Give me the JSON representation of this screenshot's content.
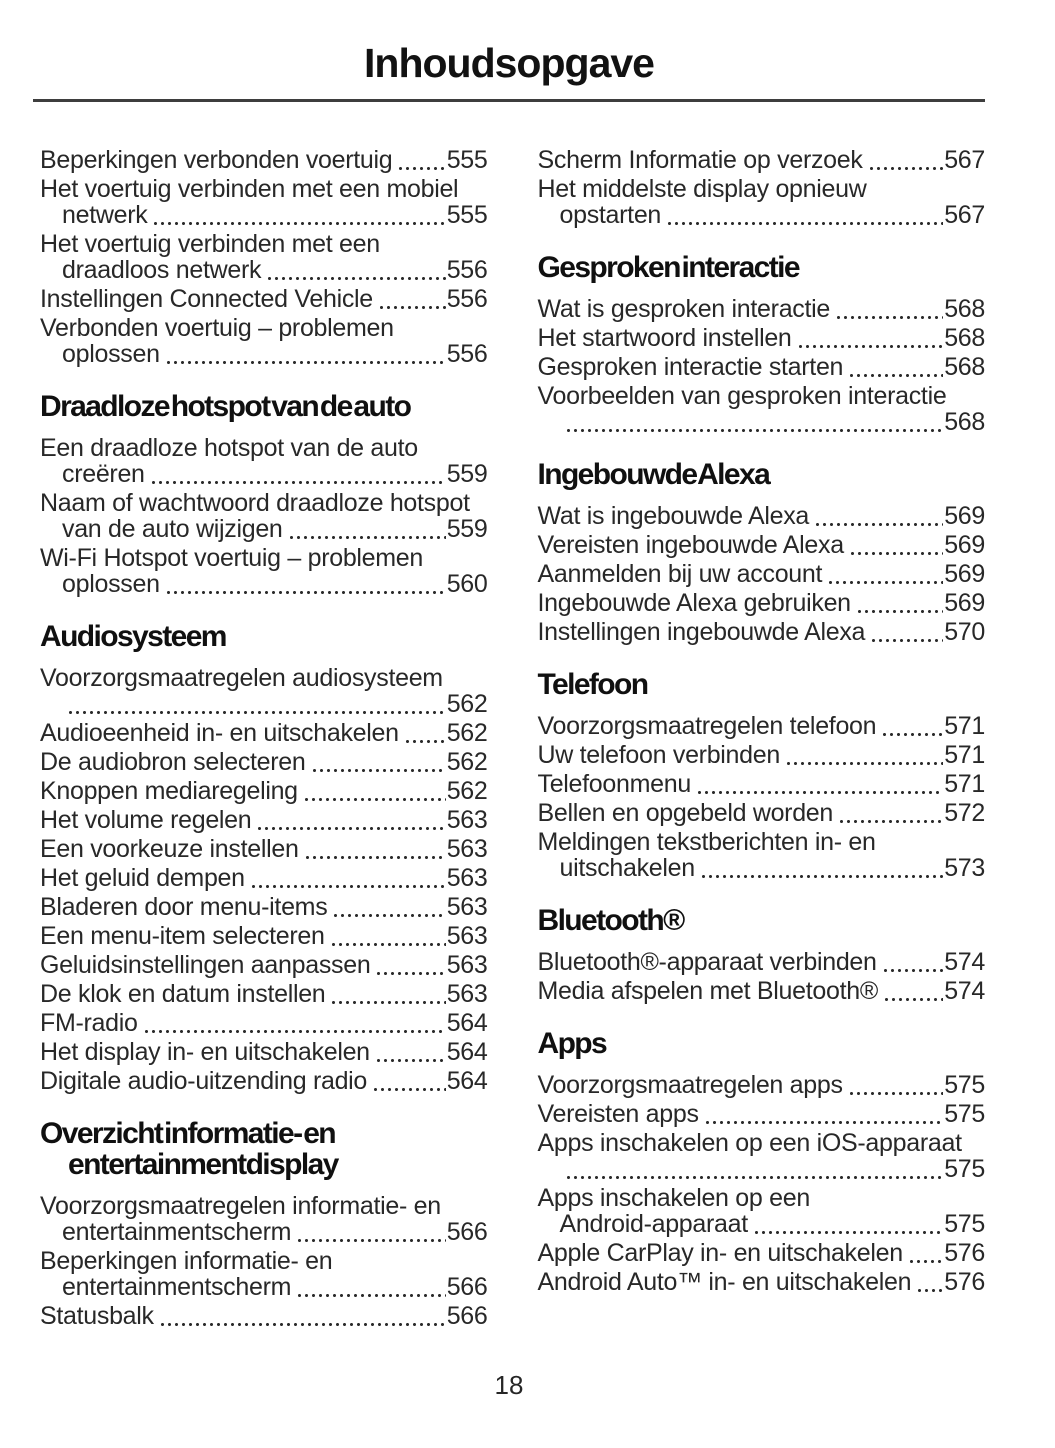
{
  "page_title": "Inhoudsopgave",
  "page_number": "18",
  "columns": [
    {
      "blocks": [
        {
          "heading": null,
          "entries": [
            {
              "text": "Beperkingen verbonden voertuig",
              "page": "555"
            },
            {
              "text": "Het voertuig verbinden met een mobiel",
              "wrap": "netwerk",
              "page": "555"
            },
            {
              "text": "Het voertuig verbinden met een",
              "wrap": "draadloos netwerk",
              "page": "556"
            },
            {
              "text": "Instellingen Connected Vehicle",
              "page": "556"
            },
            {
              "text": "Verbonden voertuig – problemen",
              "wrap": "oplossen",
              "page": "556"
            }
          ]
        },
        {
          "heading": "Draadloze hotspot van de auto",
          "entries": [
            {
              "text": "Een draadloze hotspot van de auto",
              "wrap": "creëren",
              "page": "559"
            },
            {
              "text": "Naam of wachtwoord draadloze hotspot",
              "wrap": "van de auto wijzigen",
              "page": "559"
            },
            {
              "text": "Wi-Fi Hotspot voertuig – problemen",
              "wrap": "oplossen",
              "page": "560"
            }
          ]
        },
        {
          "heading": "Audiosysteem",
          "entries": [
            {
              "text": "Voorzorgsmaatregelen audiosysteem",
              "wrap": "",
              "page": "562"
            },
            {
              "text": "Audioeenheid in- en uitschakelen",
              "page": "562"
            },
            {
              "text": "De audiobron selecteren",
              "page": "562"
            },
            {
              "text": "Knoppen mediaregeling",
              "page": "562"
            },
            {
              "text": "Het volume regelen",
              "page": "563"
            },
            {
              "text": "Een voorkeuze instellen",
              "page": "563"
            },
            {
              "text": "Het geluid dempen",
              "page": "563"
            },
            {
              "text": "Bladeren door menu-items",
              "page": "563"
            },
            {
              "text": "Een menu-item selecteren",
              "page": "563"
            },
            {
              "text": "Geluidsinstellingen aanpassen",
              "page": "563"
            },
            {
              "text": "De klok en datum instellen",
              "page": "563"
            },
            {
              "text": "FM-radio",
              "page": "564"
            },
            {
              "text": "Het display in- en uitschakelen",
              "page": "564"
            },
            {
              "text": "Digitale audio-uitzending radio",
              "page": "564"
            }
          ]
        },
        {
          "heading": "Overzicht informatie- en",
          "heading2": "entertainmentdisplay",
          "entries": [
            {
              "text": "Voorzorgsmaatregelen informatie- en",
              "wrap": "entertainmentscherm",
              "page": "566"
            },
            {
              "text": "Beperkingen informatie- en",
              "wrap": "entertainmentscherm",
              "page": "566"
            },
            {
              "text": "Statusbalk",
              "page": "566"
            }
          ]
        }
      ]
    },
    {
      "blocks": [
        {
          "heading": null,
          "entries": [
            {
              "text": "Scherm Informatie op verzoek",
              "page": "567"
            },
            {
              "text": "Het middelste display opnieuw",
              "wrap": "opstarten",
              "page": "567"
            }
          ]
        },
        {
          "heading": "Gesproken interactie",
          "entries": [
            {
              "text": "Wat is gesproken interactie",
              "page": "568"
            },
            {
              "text": "Het startwoord instellen",
              "page": "568"
            },
            {
              "text": "Gesproken interactie starten",
              "page": "568"
            },
            {
              "text": "Voorbeelden van gesproken interactie",
              "wrap": "",
              "page": "568"
            }
          ]
        },
        {
          "heading": "Ingebouwde Alexa",
          "entries": [
            {
              "text": "Wat is ingebouwde Alexa",
              "page": "569"
            },
            {
              "text": "Vereisten ingebouwde Alexa",
              "page": "569"
            },
            {
              "text": "Aanmelden bij uw account",
              "page": "569"
            },
            {
              "text": "Ingebouwde Alexa gebruiken",
              "page": "569"
            },
            {
              "text": "Instellingen ingebouwde Alexa",
              "page": "570"
            }
          ]
        },
        {
          "heading": "Telefoon",
          "entries": [
            {
              "text": "Voorzorgsmaatregelen telefoon",
              "page": "571"
            },
            {
              "text": "Uw telefoon verbinden",
              "page": "571"
            },
            {
              "text": "Telefoonmenu",
              "page": "571"
            },
            {
              "text": "Bellen en opgebeld worden",
              "page": "572"
            },
            {
              "text": "Meldingen tekstberichten in- en",
              "wrap": "uitschakelen",
              "page": "573"
            }
          ]
        },
        {
          "heading": "Bluetooth®",
          "entries": [
            {
              "text": "Bluetooth®-apparaat verbinden",
              "page": "574"
            },
            {
              "text": "Media afspelen met Bluetooth®",
              "page": "574"
            }
          ]
        },
        {
          "heading": "Apps",
          "entries": [
            {
              "text": "Voorzorgsmaatregelen apps",
              "page": "575"
            },
            {
              "text": "Vereisten apps",
              "page": "575"
            },
            {
              "text": "Apps inschakelen op een iOS-apparaat",
              "wrap": "",
              "page": "575"
            },
            {
              "text": "Apps inschakelen op een",
              "wrap": "Android-apparaat",
              "page": "575"
            },
            {
              "text": "Apple CarPlay in- en uitschakelen",
              "page": "576"
            },
            {
              "text": "Android Auto™ in- en uitschakelen",
              "page": "576"
            }
          ]
        }
      ]
    }
  ]
}
